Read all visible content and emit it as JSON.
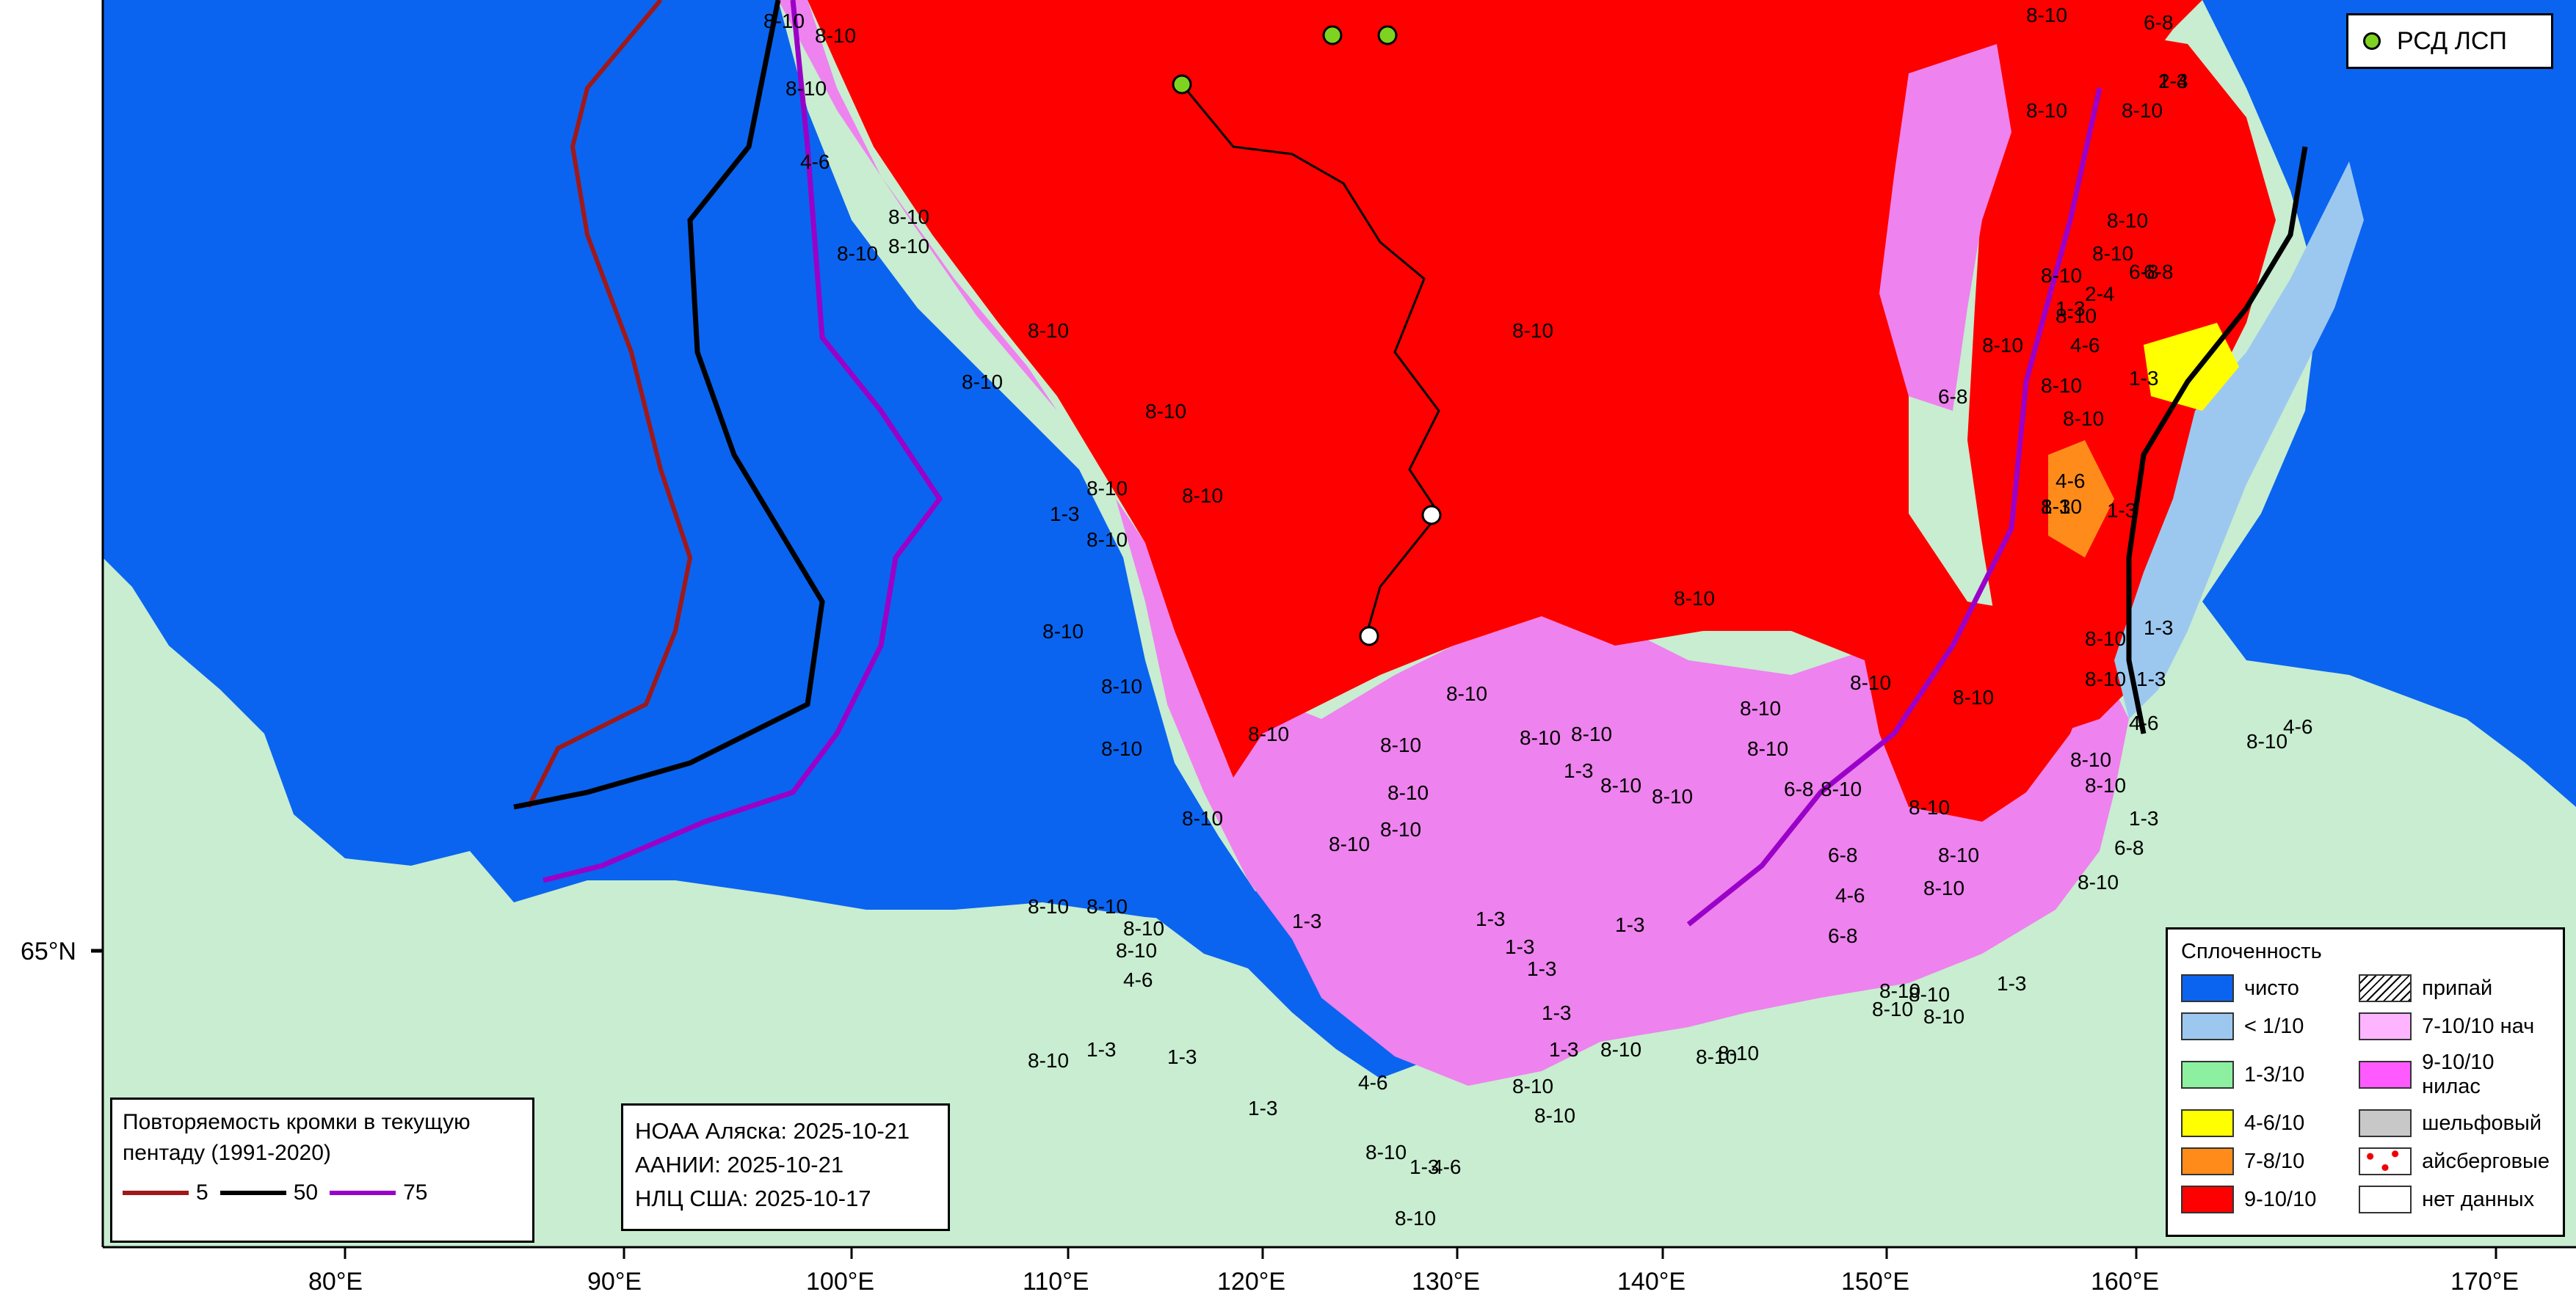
{
  "colors": {
    "land": "#c8edd0",
    "open_water": "#0a64f0",
    "ice_9_10": "#ff0000",
    "ice_7_10_nilas": "#ee82ee",
    "light_blue": "#9cc8f0",
    "yellow": "#ffff00",
    "orange": "#ff8c1a",
    "edge_5": "#a01818",
    "edge_50": "#000000",
    "edge_75": "#9a00c8",
    "rsd_dot": "#7ed321"
  },
  "axes": {
    "lon_ticks": [
      "80°E",
      "90°E",
      "100°E",
      "110°E",
      "120°E",
      "130°E",
      "140°E",
      "150°E",
      "160°E",
      "170°E"
    ],
    "lat_ticks": [
      "65°N"
    ]
  },
  "rsd_legend": {
    "label": "РСД ЛСП"
  },
  "sources": {
    "line1": "НОАА Аляска: 2025-10-21",
    "line2": "ААНИИ: 2025-10-21",
    "line3": "НЛЦ США: 2025-10-17"
  },
  "edge_legend": {
    "title": "Повторяемость кромки в текущую пентаду (1991-2020)",
    "items": [
      {
        "value": "5",
        "color": "#a01818"
      },
      {
        "value": "50",
        "color": "#000000"
      },
      {
        "value": "75",
        "color": "#9a00c8"
      }
    ]
  },
  "concentration_legend": {
    "title": "Сплоченность",
    "items": [
      {
        "label": "чисто",
        "color": "#0a64f0",
        "pattern": "solid"
      },
      {
        "label": "припай",
        "color": "#ffffff",
        "pattern": "hatch"
      },
      {
        "label": "< 1/10",
        "color": "#9cc8f0",
        "pattern": "solid"
      },
      {
        "label": "7-10/10 нач",
        "color": "#ffb4ff",
        "pattern": "solid"
      },
      {
        "label": "1-3/10",
        "color": "#8cf0a0",
        "pattern": "solid"
      },
      {
        "label": "9-10/10 нилас",
        "color": "#ff5aff",
        "pattern": "solid"
      },
      {
        "label": "4-6/10",
        "color": "#ffff00",
        "pattern": "solid"
      },
      {
        "label": "шельфовый",
        "color": "#c8c8c8",
        "pattern": "solid"
      },
      {
        "label": "7-8/10",
        "color": "#ff8c1a",
        "pattern": "solid"
      },
      {
        "label": "айсберговые",
        "color": "#ffffff",
        "pattern": "iceberg"
      },
      {
        "label": "9-10/10",
        "color": "#ff0000",
        "pattern": "solid"
      },
      {
        "label": "нет данных",
        "color": "#ffffff",
        "pattern": "solid"
      }
    ]
  },
  "map_labels": [
    "8-10",
    "8-10",
    "8-10",
    "8-10",
    "4-6",
    "8-10",
    "8-10",
    "8-10",
    "8-10",
    "8-10",
    "8-10",
    "8-10",
    "8-10",
    "1-3",
    "8-10",
    "8-10",
    "8-10",
    "8-10",
    "8-10",
    "8-10",
    "8-10",
    "8-10",
    "1-3",
    "8-10",
    "8-10",
    "6-8",
    "8-10",
    "8-10",
    "8-10",
    "8-10",
    "8-10",
    "8-10",
    "8-10",
    "8-10",
    "8-10",
    "8-10",
    "1-3",
    "8-10",
    "8-10",
    "4-6",
    "8-10",
    "8-10",
    "1-3",
    "1-3",
    "1-3",
    "1-3",
    "1-3",
    "8-10",
    "4-6",
    "8-10",
    "8-10",
    "8-10",
    "1-3",
    "8-10",
    "1-3",
    "4-6",
    "8-10",
    "8-10",
    "1-3",
    "1-3",
    "1-3",
    "8-10",
    "8-10",
    "8-10",
    "8-10",
    "6-8",
    "1-3",
    "8-10",
    "2-4",
    "6-8",
    "8-10",
    "8-10",
    "6-8",
    "8-10",
    "1-3",
    "2-4",
    "8-10",
    "4-6",
    "8-10",
    "1-3",
    "6-8",
    "8-10",
    "1-3",
    "4-6",
    "8-10",
    "1-3",
    "1-3",
    "8-10",
    "8-10",
    "1-3",
    "4-6",
    "8-10",
    "8-10",
    "4-6",
    "8-10",
    "8-10",
    "1-3",
    "6-8",
    "8-10",
    "6-8",
    "4-6",
    "8-10",
    "6-8",
    "8-10",
    "8-10",
    "8-10",
    "8-10",
    "1-3",
    "8-10",
    "8-10"
  ]
}
